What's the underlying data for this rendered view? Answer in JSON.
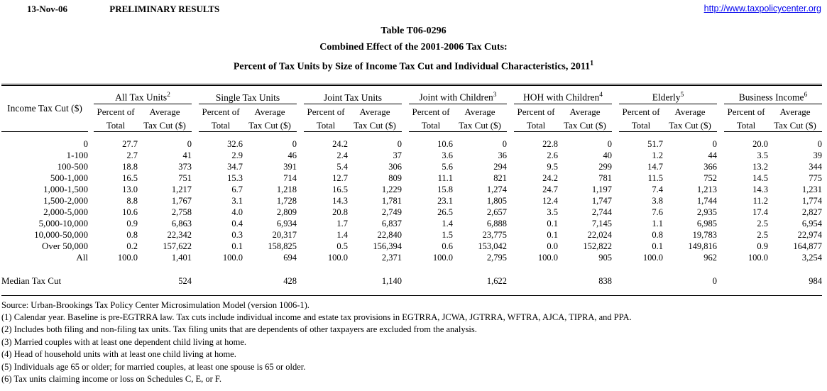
{
  "topbar": {
    "date": "13-Nov-06",
    "status": "PRELIMINARY RESULTS",
    "url": "http://www.taxpolicycenter.org"
  },
  "title": {
    "line1": "Table T06-0296",
    "line2": "Combined Effect of the 2001-2006 Tax Cuts:",
    "line3": "Percent of Tax Units by Size of Income Tax Cut and Individual Characteristics, 2011",
    "line3_sup": "1"
  },
  "table": {
    "row_header": "Income Tax Cut ($)",
    "subheaders": {
      "percent_line1": "Percent of",
      "percent_line2": "Total",
      "average_line1": "Average",
      "average_line2": "Tax Cut ($)"
    },
    "groups": [
      {
        "label": "All Tax Units",
        "sup": "2"
      },
      {
        "label": "Single Tax Units",
        "sup": ""
      },
      {
        "label": "Joint Tax Units",
        "sup": ""
      },
      {
        "label": "Joint with Children",
        "sup": "3"
      },
      {
        "label": "HOH with Children",
        "sup": "4"
      },
      {
        "label": "Elderly",
        "sup": "5"
      },
      {
        "label": "Business Income",
        "sup": "6"
      }
    ],
    "rows": [
      {
        "label": "0",
        "cells": [
          [
            "27.7",
            "0"
          ],
          [
            "32.6",
            "0"
          ],
          [
            "24.2",
            "0"
          ],
          [
            "10.6",
            "0"
          ],
          [
            "22.8",
            "0"
          ],
          [
            "51.7",
            "0"
          ],
          [
            "20.0",
            "0"
          ]
        ]
      },
      {
        "label": "1-100",
        "cells": [
          [
            "2.7",
            "41"
          ],
          [
            "2.9",
            "46"
          ],
          [
            "2.4",
            "37"
          ],
          [
            "3.6",
            "36"
          ],
          [
            "2.6",
            "40"
          ],
          [
            "1.2",
            "44"
          ],
          [
            "3.5",
            "39"
          ]
        ]
      },
      {
        "label": "100-500",
        "cells": [
          [
            "18.8",
            "373"
          ],
          [
            "34.7",
            "391"
          ],
          [
            "5.4",
            "306"
          ],
          [
            "5.6",
            "294"
          ],
          [
            "9.5",
            "299"
          ],
          [
            "14.7",
            "366"
          ],
          [
            "13.2",
            "344"
          ]
        ]
      },
      {
        "label": "500-1,000",
        "cells": [
          [
            "16.5",
            "751"
          ],
          [
            "15.3",
            "714"
          ],
          [
            "12.7",
            "809"
          ],
          [
            "11.1",
            "821"
          ],
          [
            "24.2",
            "781"
          ],
          [
            "11.5",
            "752"
          ],
          [
            "14.5",
            "775"
          ]
        ]
      },
      {
        "label": "1,000-1,500",
        "cells": [
          [
            "13.0",
            "1,217"
          ],
          [
            "6.7",
            "1,218"
          ],
          [
            "16.5",
            "1,229"
          ],
          [
            "15.8",
            "1,274"
          ],
          [
            "24.7",
            "1,197"
          ],
          [
            "7.4",
            "1,213"
          ],
          [
            "14.3",
            "1,231"
          ]
        ]
      },
      {
        "label": "1,500-2,000",
        "cells": [
          [
            "8.8",
            "1,767"
          ],
          [
            "3.1",
            "1,728"
          ],
          [
            "14.3",
            "1,781"
          ],
          [
            "23.1",
            "1,805"
          ],
          [
            "12.4",
            "1,747"
          ],
          [
            "3.8",
            "1,744"
          ],
          [
            "11.2",
            "1,774"
          ]
        ]
      },
      {
        "label": "2,000-5,000",
        "cells": [
          [
            "10.6",
            "2,758"
          ],
          [
            "4.0",
            "2,809"
          ],
          [
            "20.8",
            "2,749"
          ],
          [
            "26.5",
            "2,657"
          ],
          [
            "3.5",
            "2,744"
          ],
          [
            "7.6",
            "2,935"
          ],
          [
            "17.4",
            "2,827"
          ]
        ]
      },
      {
        "label": "5,000-10,000",
        "cells": [
          [
            "0.9",
            "6,863"
          ],
          [
            "0.4",
            "6,934"
          ],
          [
            "1.7",
            "6,837"
          ],
          [
            "1.4",
            "6,888"
          ],
          [
            "0.1",
            "7,145"
          ],
          [
            "1.1",
            "6,985"
          ],
          [
            "2.5",
            "6,954"
          ]
        ]
      },
      {
        "label": "10,000-50,000",
        "cells": [
          [
            "0.8",
            "22,342"
          ],
          [
            "0.3",
            "20,317"
          ],
          [
            "1.4",
            "22,840"
          ],
          [
            "1.5",
            "23,775"
          ],
          [
            "0.1",
            "22,024"
          ],
          [
            "0.8",
            "19,783"
          ],
          [
            "2.5",
            "22,974"
          ]
        ]
      },
      {
        "label": "Over 50,000",
        "cells": [
          [
            "0.2",
            "157,622"
          ],
          [
            "0.1",
            "158,825"
          ],
          [
            "0.5",
            "156,394"
          ],
          [
            "0.6",
            "153,042"
          ],
          [
            "0.0",
            "152,822"
          ],
          [
            "0.1",
            "149,816"
          ],
          [
            "0.9",
            "164,877"
          ]
        ]
      },
      {
        "label": "All",
        "cells": [
          [
            "100.0",
            "1,401"
          ],
          [
            "100.0",
            "694"
          ],
          [
            "100.0",
            "2,371"
          ],
          [
            "100.0",
            "2,795"
          ],
          [
            "100.0",
            "905"
          ],
          [
            "100.0",
            "962"
          ],
          [
            "100.0",
            "3,254"
          ]
        ]
      }
    ],
    "median": {
      "label": "Median Tax Cut",
      "values": [
        "524",
        "428",
        "1,140",
        "1,622",
        "838",
        "0",
        "984"
      ]
    }
  },
  "notes": [
    "Source: Urban-Brookings Tax Policy Center Microsimulation Model (version 1006-1).",
    "(1) Calendar year. Baseline is pre-EGTRRA law. Tax cuts include individual income and estate tax provisions in EGTRRA, JCWA, JGTRRA, WFTRA, AJCA, TIPRA, and PPA.",
    "(2) Includes both filing and non-filing tax units.  Tax filing units that are dependents of other taxpayers are excluded from the analysis.",
    "(3) Married couples with at least one dependent child living at home.",
    "(4) Head of household units with at least one child living at home.",
    "(5) Individuals age 65 or older; for married couples, at least one spouse is 65 or older.",
    "(6) Tax units claiming income or loss on Schedules C, E, or F."
  ]
}
